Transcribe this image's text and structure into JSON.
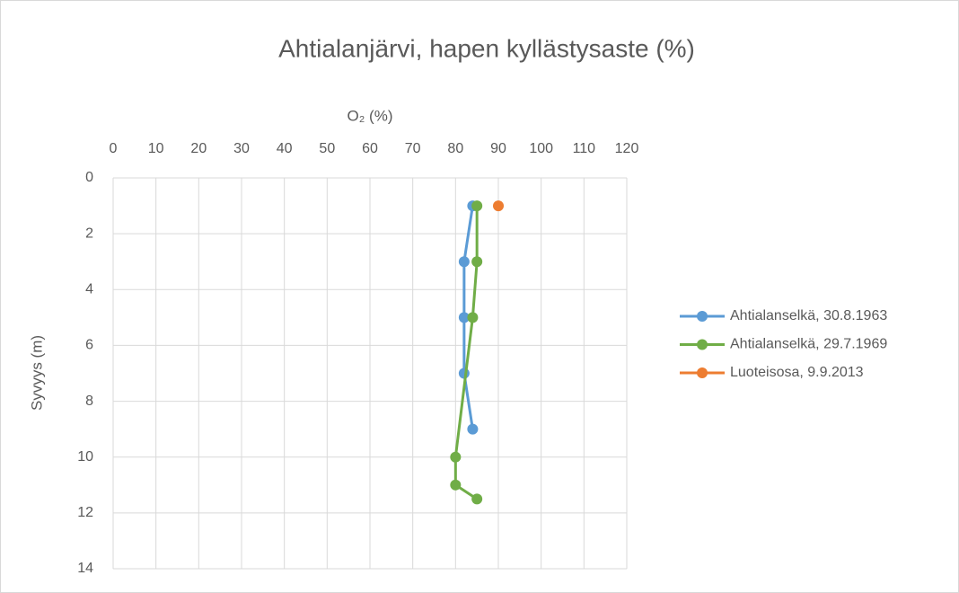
{
  "chart_data": {
    "type": "line",
    "title": "Ahtialanjärvi, hapen kyllästysaste (%)",
    "x_label": "O₂ (%)",
    "y_label": "Syvyys (m)",
    "xlim": [
      0,
      120
    ],
    "xticks": [
      0,
      10,
      20,
      30,
      40,
      50,
      60,
      70,
      80,
      90,
      100,
      110,
      120
    ],
    "ylim": [
      0,
      14
    ],
    "yticks": [
      0,
      2,
      4,
      6,
      8,
      10,
      12,
      14
    ],
    "y_inverted": true,
    "x_axis_position": "top",
    "grid": true,
    "legend": "right",
    "series": [
      {
        "name": "Ahtialanselkä, 30.8.1963",
        "color": "#5b9bd5",
        "x": [
          84,
          82,
          82,
          82,
          84
        ],
        "y": [
          1,
          3,
          5,
          7,
          9
        ]
      },
      {
        "name": "Ahtialanselkä, 29.7.1969",
        "color": "#70ad47",
        "x": [
          85,
          85,
          84,
          80,
          80,
          85
        ],
        "y": [
          1,
          3,
          5,
          10,
          11,
          11.5
        ]
      },
      {
        "name": "Luoteisosa, 9.9.2013",
        "color": "#ed7d31",
        "x": [
          90
        ],
        "y": [
          1
        ]
      }
    ]
  }
}
